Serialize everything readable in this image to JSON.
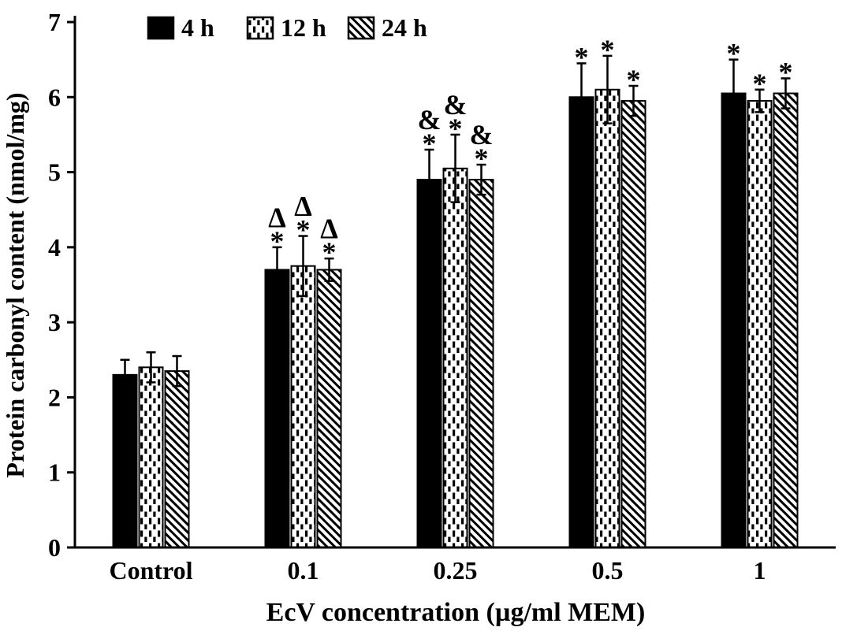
{
  "figure": {
    "background": "#ffffff",
    "foreground": "#000000"
  },
  "chart_data": {
    "type": "bar",
    "title": "",
    "xlabel": "EcV concentration (µg/ml MEM)",
    "ylabel": "Protein carbonyl content (nmol/mg)",
    "ylim": [
      0,
      7
    ],
    "yticks": [
      0,
      1,
      2,
      3,
      4,
      5,
      6,
      7
    ],
    "grid": false,
    "legend_position": "top-left-inside",
    "categories": [
      "Control",
      "0.1",
      "0.25",
      "0.5",
      "1"
    ],
    "series": [
      {
        "name": "4 h",
        "pattern": "solid",
        "values": [
          2.3,
          3.7,
          4.9,
          6.0,
          6.05
        ],
        "errors": [
          0.2,
          0.3,
          0.4,
          0.45,
          0.45
        ]
      },
      {
        "name": "12 h",
        "pattern": "dotted",
        "values": [
          2.4,
          3.75,
          5.05,
          6.1,
          5.95
        ],
        "errors": [
          0.2,
          0.4,
          0.45,
          0.45,
          0.15
        ]
      },
      {
        "name": "24 h",
        "pattern": "hatch",
        "values": [
          2.35,
          3.7,
          4.9,
          5.95,
          6.05
        ],
        "errors": [
          0.2,
          0.15,
          0.2,
          0.2,
          0.2
        ]
      }
    ],
    "annotations": [
      {
        "category": "0.1",
        "symbols": [
          "*",
          "Δ"
        ]
      },
      {
        "category": "0.25",
        "symbols": [
          "*",
          "&"
        ]
      },
      {
        "category": "0.5",
        "symbols": [
          "*"
        ]
      },
      {
        "category": "1",
        "symbols": [
          "*"
        ]
      }
    ],
    "colors": {
      "bar_fill": "#000000",
      "bar_outline": "#000000",
      "background": "#ffffff"
    }
  }
}
